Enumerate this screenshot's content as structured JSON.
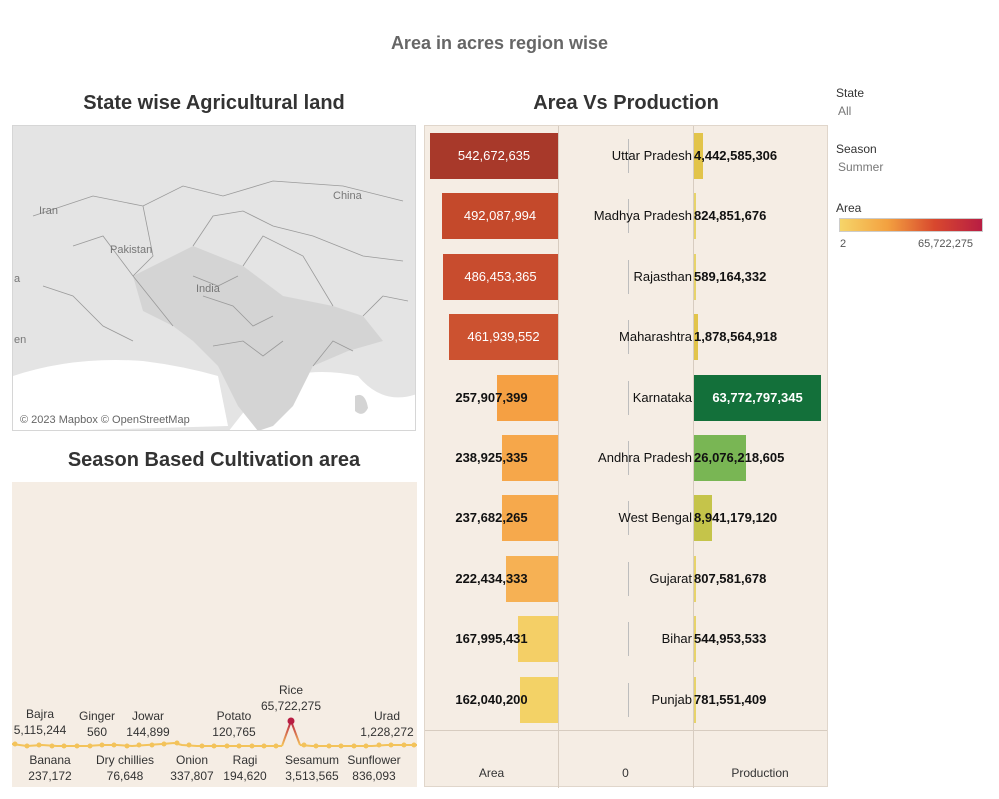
{
  "dashboard_title": "Area in acres region wise",
  "panels": {
    "map_title": "State wise Agricultural land",
    "season_title": "Season Based Cultivation area",
    "avp_title": "Area Vs Production"
  },
  "map": {
    "labels": [
      "Iran",
      "Pakistan",
      "India",
      "China",
      "en",
      "a"
    ],
    "attribution": "© 2023 Mapbox © OpenStreetMap"
  },
  "season_chart": {
    "peak": {
      "crop": "Rice",
      "value": "65,722,275"
    },
    "top_labels": [
      {
        "crop": "Bajra",
        "value": "5,115,244"
      },
      {
        "crop": "Ginger",
        "value": "560"
      },
      {
        "crop": "Jowar",
        "value": "144,899"
      },
      {
        "crop": "Potato",
        "value": "120,765"
      },
      {
        "crop": "Urad",
        "value": "1,228,272"
      }
    ],
    "bottom_labels": [
      {
        "crop": "Banana",
        "value": "237,172"
      },
      {
        "crop": "Dry chillies",
        "value": "76,648"
      },
      {
        "crop": "Onion",
        "value": "337,807"
      },
      {
        "crop": "Ragi",
        "value": "194,620"
      },
      {
        "crop": "Sesamum",
        "value": "3,513,565"
      },
      {
        "crop": "Sunflower",
        "value": "836,093"
      }
    ]
  },
  "chart_data": {
    "type": "bar",
    "title": "Area Vs Production",
    "categories": [
      "Uttar Pradesh",
      "Madhya Pradesh",
      "Rajasthan",
      "Maharashtra",
      "Karnataka",
      "Andhra Pradesh",
      "West Bengal",
      "Gujarat",
      "Bihar",
      "Punjab"
    ],
    "series": [
      {
        "name": "Area",
        "values": [
          542672635,
          492087994,
          486453365,
          461939552,
          257907399,
          238925335,
          237682265,
          222434333,
          167995431,
          162040200
        ]
      },
      {
        "name": "Production",
        "values": [
          4442585306,
          824851676,
          589164332,
          1878564918,
          63772797345,
          26076218605,
          8941179120,
          807581678,
          544953533,
          781551409
        ]
      }
    ],
    "labels": {
      "area": [
        "542,672,635",
        "492,087,994",
        "486,453,365",
        "461,939,552",
        "257,907,399",
        "238,925,335",
        "237,682,265",
        "222,434,333",
        "167,995,431",
        "162,040,200"
      ],
      "production": [
        "4,442,585,306",
        "824,851,676",
        "589,164,332",
        "1,878,564,918",
        "63,772,797,345",
        "26,076,218,605",
        "8,941,179,120",
        "807,581,678",
        "544,953,533",
        "781,551,409"
      ]
    },
    "area_colors": [
      "#a8392a",
      "#c4492b",
      "#c84c2e",
      "#cc5230",
      "#f5a043",
      "#f6a74a",
      "#f6a94c",
      "#f6b154",
      "#f4cf66",
      "#f3d266"
    ],
    "production_colors": [
      "#e2c44a",
      "#e7d36a",
      "#e7d36a",
      "#e2c44a",
      "#13703a",
      "#79b654",
      "#c5c44a",
      "#e7d36a",
      "#e7d36a",
      "#e7d36a"
    ],
    "axis_labels": [
      "Area",
      "0",
      "Production"
    ]
  },
  "filters": {
    "state_label": "State",
    "state_value": "All",
    "season_label": "Season",
    "season_value": "Summer",
    "area_label": "Area",
    "area_min": "2",
    "area_max": "65,722,275"
  }
}
